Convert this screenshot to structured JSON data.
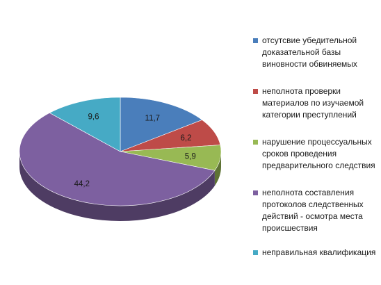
{
  "chart_data": {
    "type": "pie",
    "style": "3d",
    "labels": [
      "отсутсвие убедительной доказательной базы виновности обвиняемых",
      "неполнота проверки материалов по изучаемой категории преступлений",
      "нарушение процессуальных сроков проведения предварительного следствия",
      "неполнота составления протоколов следственных действий - осмотра места происшествия",
      "неправильная квалификация"
    ],
    "legend_lines": [
      [
        "отсутсвие убедительной",
        "доказательной базы",
        "виновности обвиняемых"
      ],
      [
        "неполнота проверки",
        "материалов по изучаемой",
        "категории преступлений"
      ],
      [
        "нарушение процессуальных",
        "сроков проведения",
        "предварительного следствия"
      ],
      [
        "неполнота составления",
        "протоколов следственных",
        "действий - осмотра места",
        "происшествия"
      ],
      [
        "неправильная квалификация"
      ]
    ],
    "values": [
      11.7,
      6.2,
      5.9,
      44.2,
      9.6
    ],
    "value_labels": [
      "11,7",
      "6,2",
      "5,9",
      "44,2",
      "9,6"
    ],
    "colors": [
      "#4a7ebb",
      "#be4b48",
      "#98b954",
      "#7d60a0",
      "#46aac5"
    ],
    "legend_position": "right"
  }
}
